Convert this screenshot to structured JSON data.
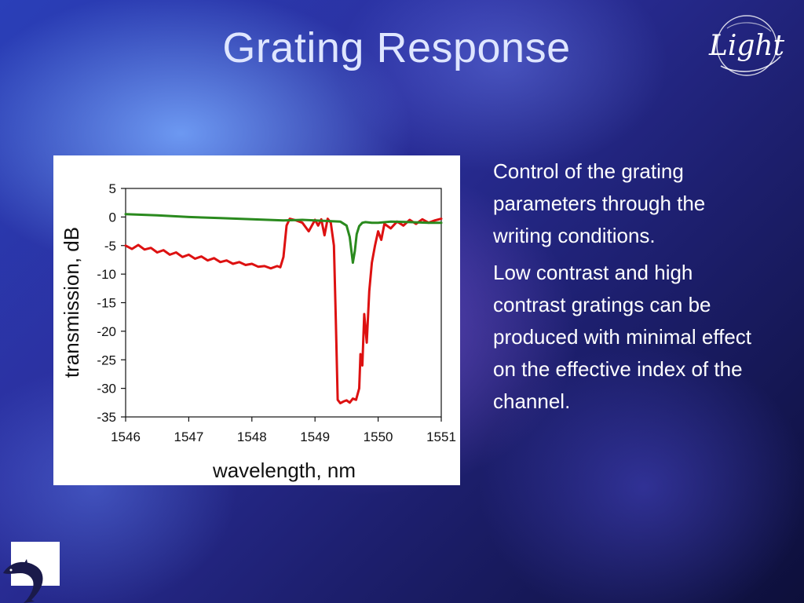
{
  "slide": {
    "title": "Grating Response",
    "paragraphs": [
      "Control of the grating parameters through the writing conditions.",
      "Low contrast and high contrast gratings can be produced with minimal effect on the effective index of the channel."
    ],
    "logo_text": "Light",
    "colors": {
      "title": "#dfe6ff",
      "body_text": "#ffffff"
    },
    "icons": [
      "light-logo",
      "dolphin-icon"
    ]
  },
  "chart_data": {
    "type": "line",
    "title": "",
    "xlabel": "wavelength, nm",
    "ylabel": "transmission, dB",
    "xlim": [
      1546,
      1551
    ],
    "ylim": [
      -35,
      5
    ],
    "xticks": [
      1546,
      1547,
      1548,
      1549,
      1550,
      1551
    ],
    "yticks": [
      5,
      0,
      -5,
      -10,
      -15,
      -20,
      -25,
      -30,
      -35
    ],
    "grid": false,
    "legend": "none",
    "series": [
      {
        "color": "#dd1111",
        "x": [
          1546.0,
          1546.1,
          1546.2,
          1546.3,
          1546.4,
          1546.5,
          1546.6,
          1546.7,
          1546.8,
          1546.9,
          1547.0,
          1547.1,
          1547.2,
          1547.3,
          1547.4,
          1547.5,
          1547.6,
          1547.7,
          1547.8,
          1547.9,
          1548.0,
          1548.1,
          1548.2,
          1548.3,
          1548.4,
          1548.45,
          1548.5,
          1548.55,
          1548.6,
          1548.7,
          1548.8,
          1548.9,
          1549.0,
          1549.05,
          1549.1,
          1549.15,
          1549.2,
          1549.25,
          1549.3,
          1549.33,
          1549.36,
          1549.4,
          1549.45,
          1549.5,
          1549.55,
          1549.6,
          1549.65,
          1549.7,
          1549.72,
          1549.75,
          1549.78,
          1549.82,
          1549.86,
          1549.9,
          1549.95,
          1550.0,
          1550.05,
          1550.1,
          1550.2,
          1550.3,
          1550.4,
          1550.5,
          1550.6,
          1550.7,
          1550.8,
          1550.9,
          1551.0
        ],
        "y": [
          -5.0,
          -5.6,
          -4.9,
          -5.7,
          -5.4,
          -6.2,
          -5.8,
          -6.6,
          -6.2,
          -7.0,
          -6.6,
          -7.3,
          -6.9,
          -7.6,
          -7.2,
          -7.9,
          -7.6,
          -8.2,
          -7.9,
          -8.4,
          -8.2,
          -8.7,
          -8.6,
          -9.0,
          -8.6,
          -8.8,
          -7.0,
          -1.5,
          -0.3,
          -0.6,
          -1.0,
          -2.5,
          -0.5,
          -1.5,
          -0.4,
          -3.2,
          -0.3,
          -1.0,
          -5.0,
          -18.0,
          -32.0,
          -32.6,
          -32.3,
          -32.1,
          -32.5,
          -31.8,
          -32.0,
          -30.0,
          -24.0,
          -26.0,
          -17.0,
          -22.0,
          -13.0,
          -8.0,
          -5.0,
          -2.5,
          -4.0,
          -1.2,
          -2.0,
          -0.8,
          -1.5,
          -0.5,
          -1.2,
          -0.4,
          -1.0,
          -0.6,
          -0.3
        ]
      },
      {
        "color": "#2a8a1e",
        "x": [
          1546.0,
          1546.5,
          1547.0,
          1547.5,
          1548.0,
          1548.5,
          1548.8,
          1549.0,
          1549.2,
          1549.4,
          1549.5,
          1549.55,
          1549.6,
          1549.63,
          1549.66,
          1549.7,
          1549.75,
          1549.8,
          1549.9,
          1550.0,
          1550.2,
          1550.5,
          1550.8,
          1551.0
        ],
        "y": [
          0.5,
          0.3,
          0.0,
          -0.2,
          -0.4,
          -0.6,
          -0.5,
          -0.6,
          -0.7,
          -0.8,
          -1.5,
          -3.5,
          -8.0,
          -6.0,
          -3.0,
          -1.6,
          -1.0,
          -0.9,
          -1.0,
          -1.0,
          -0.8,
          -0.9,
          -1.0,
          -1.0
        ]
      }
    ]
  }
}
